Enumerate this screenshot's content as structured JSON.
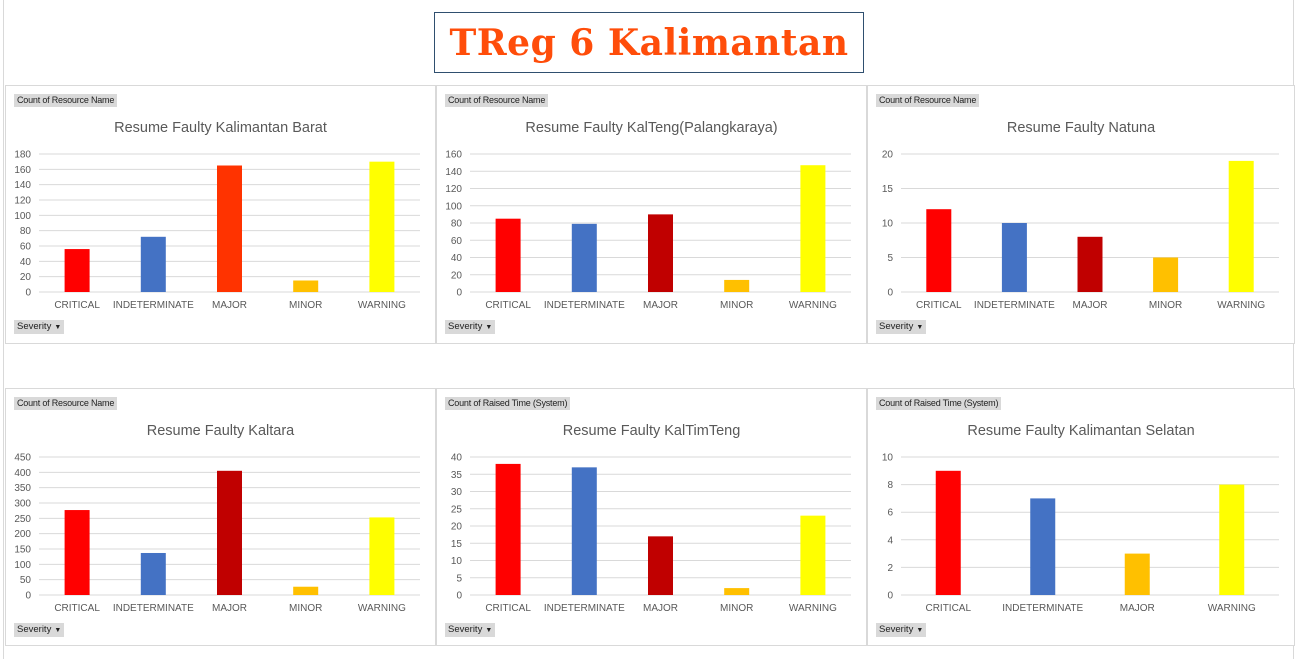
{
  "header": {
    "title": "TReg 6 Kalimantan"
  },
  "colors": {
    "critical": "#ff0000",
    "indeterminate": "#4472c4",
    "major_orange": "#ff3300",
    "major_dark": "#c00000",
    "major_amber": "#ffc000",
    "minor": "#ffc000",
    "warning": "#ffff00",
    "grid": "#d9d9d9"
  },
  "chart_data": [
    {
      "type": "bar",
      "field_label": "Count of Resource Name",
      "title": "Resume Faulty Kalimantan Barat",
      "filter_label": "Severity",
      "categories": [
        "CRITICAL",
        "INDETERMINATE",
        "MAJOR",
        "MINOR",
        "WARNING"
      ],
      "values": [
        56,
        72,
        165,
        15,
        170
      ],
      "bar_colors": [
        "#ff0000",
        "#4472c4",
        "#ff3300",
        "#ffc000",
        "#ffff00"
      ],
      "ylim": [
        0,
        180
      ],
      "yticks": [
        0,
        20,
        40,
        60,
        80,
        100,
        120,
        140,
        160,
        180
      ],
      "grid": true
    },
    {
      "type": "bar",
      "field_label": "Count of Resource Name",
      "title": "Resume Faulty KalTeng(Palangkaraya)",
      "filter_label": "Severity",
      "categories": [
        "CRITICAL",
        "INDETERMINATE",
        "MAJOR",
        "MINOR",
        "WARNING"
      ],
      "values": [
        85,
        79,
        90,
        14,
        147
      ],
      "bar_colors": [
        "#ff0000",
        "#4472c4",
        "#c00000",
        "#ffc000",
        "#ffff00"
      ],
      "ylim": [
        0,
        160
      ],
      "yticks": [
        0,
        20,
        40,
        60,
        80,
        100,
        120,
        140,
        160
      ],
      "grid": true
    },
    {
      "type": "bar",
      "field_label": "Count of Resource Name",
      "title": "Resume Faulty Natuna",
      "filter_label": "Severity",
      "categories": [
        "CRITICAL",
        "INDETERMINATE",
        "MAJOR",
        "MINOR",
        "WARNING"
      ],
      "values": [
        12,
        10,
        8,
        5,
        19
      ],
      "bar_colors": [
        "#ff0000",
        "#4472c4",
        "#c00000",
        "#ffc000",
        "#ffff00"
      ],
      "ylim": [
        0,
        20
      ],
      "yticks": [
        0,
        5,
        10,
        15,
        20
      ],
      "grid": true
    },
    {
      "type": "bar",
      "field_label": "Count of Resource Name",
      "title": "Resume Faulty Kaltara",
      "filter_label": "Severity",
      "categories": [
        "CRITICAL",
        "INDETERMINATE",
        "MAJOR",
        "MINOR",
        "WARNING"
      ],
      "values": [
        277,
        137,
        405,
        27,
        253
      ],
      "bar_colors": [
        "#ff0000",
        "#4472c4",
        "#c00000",
        "#ffc000",
        "#ffff00"
      ],
      "ylim": [
        0,
        450
      ],
      "yticks": [
        0,
        50,
        100,
        150,
        200,
        250,
        300,
        350,
        400,
        450
      ],
      "grid": true
    },
    {
      "type": "bar",
      "field_label": "Count of Raised Time  (System)",
      "title": "Resume Faulty KalTimTeng",
      "filter_label": "Severity",
      "categories": [
        "CRITICAL",
        "INDETERMINATE",
        "MAJOR",
        "MINOR",
        "WARNING"
      ],
      "values": [
        38,
        37,
        17,
        2,
        23
      ],
      "bar_colors": [
        "#ff0000",
        "#4472c4",
        "#c00000",
        "#ffc000",
        "#ffff00"
      ],
      "ylim": [
        0,
        40
      ],
      "yticks": [
        0,
        5,
        10,
        15,
        20,
        25,
        30,
        35,
        40
      ],
      "grid": true
    },
    {
      "type": "bar",
      "field_label": "Count of Raised Time  (System)",
      "title": "Resume Faulty Kalimantan Selatan",
      "filter_label": "Severity",
      "categories": [
        "CRITICAL",
        "INDETERMINATE",
        "MAJOR",
        "WARNING"
      ],
      "values": [
        9,
        7,
        3,
        8
      ],
      "bar_colors": [
        "#ff0000",
        "#4472c4",
        "#ffc000",
        "#ffff00"
      ],
      "ylim": [
        0,
        10
      ],
      "yticks": [
        0,
        2,
        4,
        6,
        8,
        10
      ],
      "grid": true
    }
  ]
}
